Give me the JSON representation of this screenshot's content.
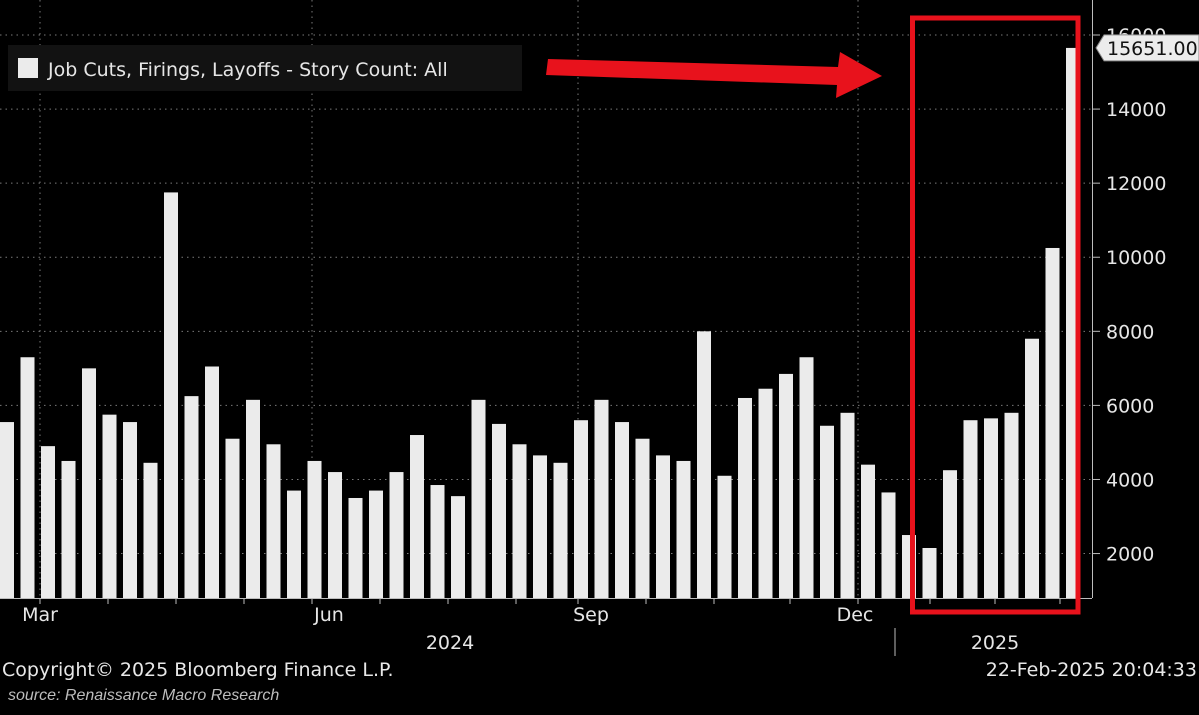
{
  "chart_data": {
    "type": "bar",
    "legend": "Job Cuts, Firings, Layoffs - Story Count: All",
    "legend_placement": "top-left",
    "last_value_label": "15651.00",
    "ylim": [
      800,
      16000
    ],
    "y_ticks": [
      2000,
      4000,
      6000,
      8000,
      10000,
      12000,
      14000,
      16000
    ],
    "y_tick_labels": [
      "2000",
      "4000",
      "6000",
      "8000",
      "10000",
      "12000",
      "14000",
      "16000"
    ],
    "x_month_labels": [
      "Mar",
      "Jun",
      "Sep",
      "Dec"
    ],
    "x_year_labels": [
      "2024",
      "2025"
    ],
    "grid": true,
    "values": [
      5550,
      7300,
      4900,
      4500,
      7000,
      5750,
      5550,
      4450,
      11750,
      6250,
      7050,
      5100,
      6150,
      4950,
      3700,
      4500,
      4200,
      3500,
      3700,
      4200,
      5200,
      3850,
      3550,
      6150,
      5500,
      4950,
      4650,
      4450,
      5600,
      6150,
      5550,
      5100,
      4650,
      4500,
      8000,
      4100,
      6200,
      6450,
      6850,
      7300,
      5450,
      5800,
      4400,
      3650,
      2500,
      2150,
      4250,
      5600,
      5650,
      5800,
      7800,
      10250,
      15651
    ],
    "highlight_box": {
      "color": "#e8121c",
      "from_bar_index": 45
    },
    "arrow_color": "#e8121c",
    "bar_color": "#ebebeb",
    "grid_color": "#7a7a7a",
    "background": "#000000"
  },
  "footer": {
    "copyright": "Copyright© 2025 Bloomberg Finance L.P.",
    "timestamp": "22-Feb-2025 20:04:33",
    "source": "source: Renaissance Macro Research"
  }
}
